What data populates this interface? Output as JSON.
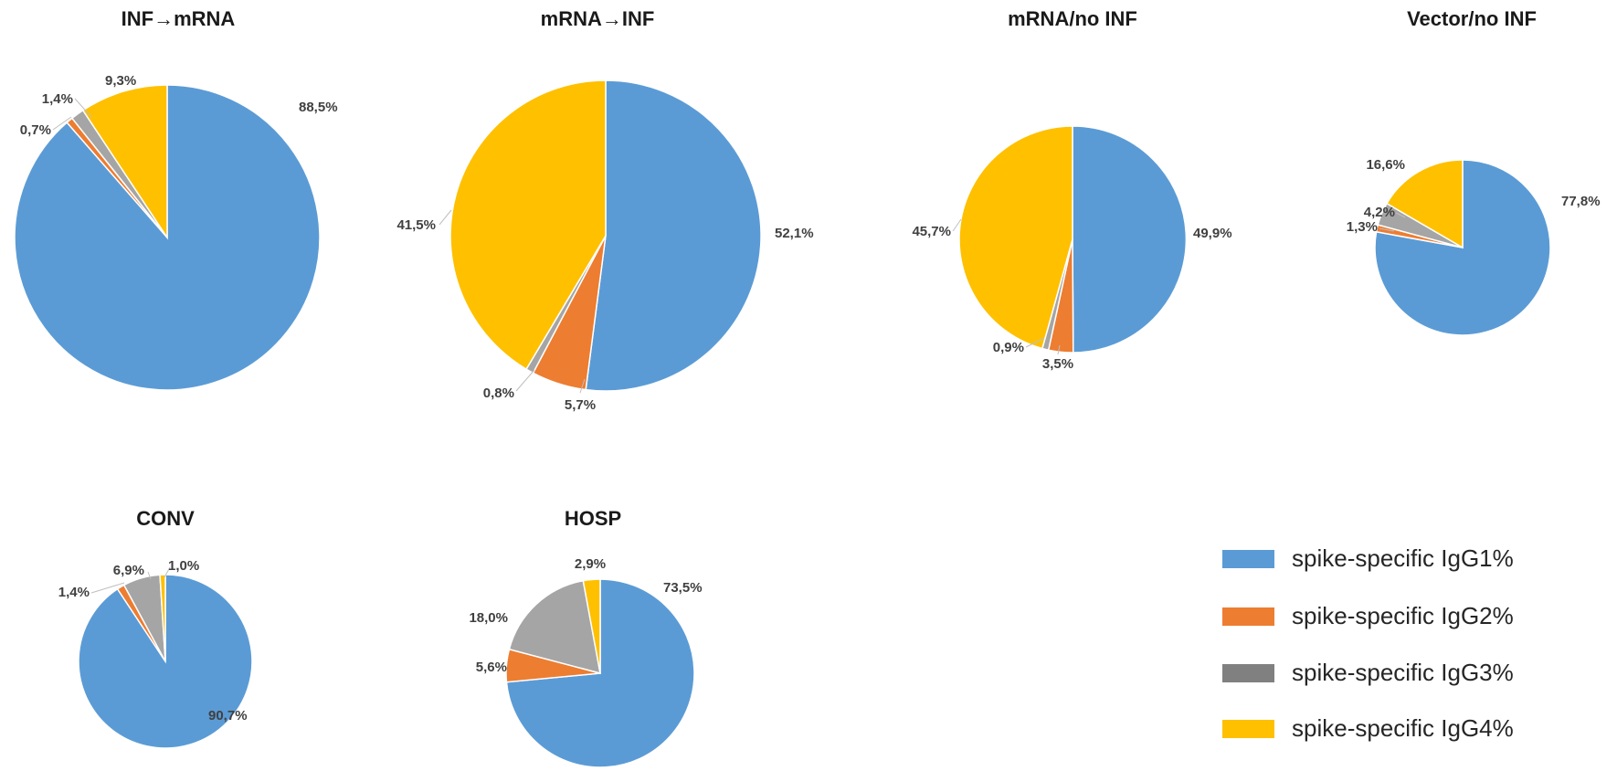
{
  "colors": {
    "IgG1": "#5b9bd5",
    "IgG2": "#ed7d31",
    "IgG3": "#a5a5a5",
    "IgG4": "#ffc000"
  },
  "legend": [
    {
      "key": "IgG1",
      "label": "spike-specific IgG1%",
      "color": "#5b9bd5"
    },
    {
      "key": "IgG2",
      "label": "spike-specific IgG2%",
      "color": "#ed7d31"
    },
    {
      "key": "IgG3",
      "label": "spike-specific IgG3%",
      "color": "#808080"
    },
    {
      "key": "IgG4",
      "label": "spike-specific IgG4%",
      "color": "#ffc000"
    }
  ],
  "chart_data": [
    {
      "type": "pie",
      "title": "INF→mRNA",
      "slices": [
        {
          "key": "IgG1",
          "value": 88.5,
          "label": "88,5%"
        },
        {
          "key": "IgG2",
          "value": 0.7,
          "label": "0,7%"
        },
        {
          "key": "IgG3",
          "value": 1.4,
          "label": "1,4%"
        },
        {
          "key": "IgG4",
          "value": 9.3,
          "label": "9,3%"
        }
      ]
    },
    {
      "type": "pie",
      "title": "mRNA→INF",
      "slices": [
        {
          "key": "IgG1",
          "value": 52.1,
          "label": "52,1%"
        },
        {
          "key": "IgG2",
          "value": 5.7,
          "label": "5,7%"
        },
        {
          "key": "IgG3",
          "value": 0.8,
          "label": "0,8%"
        },
        {
          "key": "IgG4",
          "value": 41.5,
          "label": "41,5%"
        }
      ]
    },
    {
      "type": "pie",
      "title": "mRNA/no INF",
      "slices": [
        {
          "key": "IgG1",
          "value": 49.9,
          "label": "49,9%"
        },
        {
          "key": "IgG2",
          "value": 3.5,
          "label": "3,5%"
        },
        {
          "key": "IgG3",
          "value": 0.9,
          "label": "0,9%"
        },
        {
          "key": "IgG4",
          "value": 45.7,
          "label": "45,7%"
        }
      ]
    },
    {
      "type": "pie",
      "title": "Vector/no INF",
      "slices": [
        {
          "key": "IgG1",
          "value": 77.8,
          "label": "77,8%"
        },
        {
          "key": "IgG2",
          "value": 1.3,
          "label": "1,3%"
        },
        {
          "key": "IgG3",
          "value": 4.2,
          "label": "4,2%"
        },
        {
          "key": "IgG4",
          "value": 16.6,
          "label": "16,6%"
        }
      ]
    },
    {
      "type": "pie",
      "title": "CONV",
      "slices": [
        {
          "key": "IgG1",
          "value": 90.7,
          "label": "90,7%"
        },
        {
          "key": "IgG2",
          "value": 1.4,
          "label": "1,4%"
        },
        {
          "key": "IgG3",
          "value": 6.9,
          "label": "6,9%"
        },
        {
          "key": "IgG4",
          "value": 1.0,
          "label": "1,0%"
        }
      ]
    },
    {
      "type": "pie",
      "title": "HOSP",
      "slices": [
        {
          "key": "IgG1",
          "value": 73.5,
          "label": "73,5%"
        },
        {
          "key": "IgG2",
          "value": 5.6,
          "label": "5,6%"
        },
        {
          "key": "IgG3",
          "value": 18.0,
          "label": "18,0%"
        },
        {
          "key": "IgG4",
          "value": 2.9,
          "label": "2,9%"
        }
      ]
    }
  ]
}
